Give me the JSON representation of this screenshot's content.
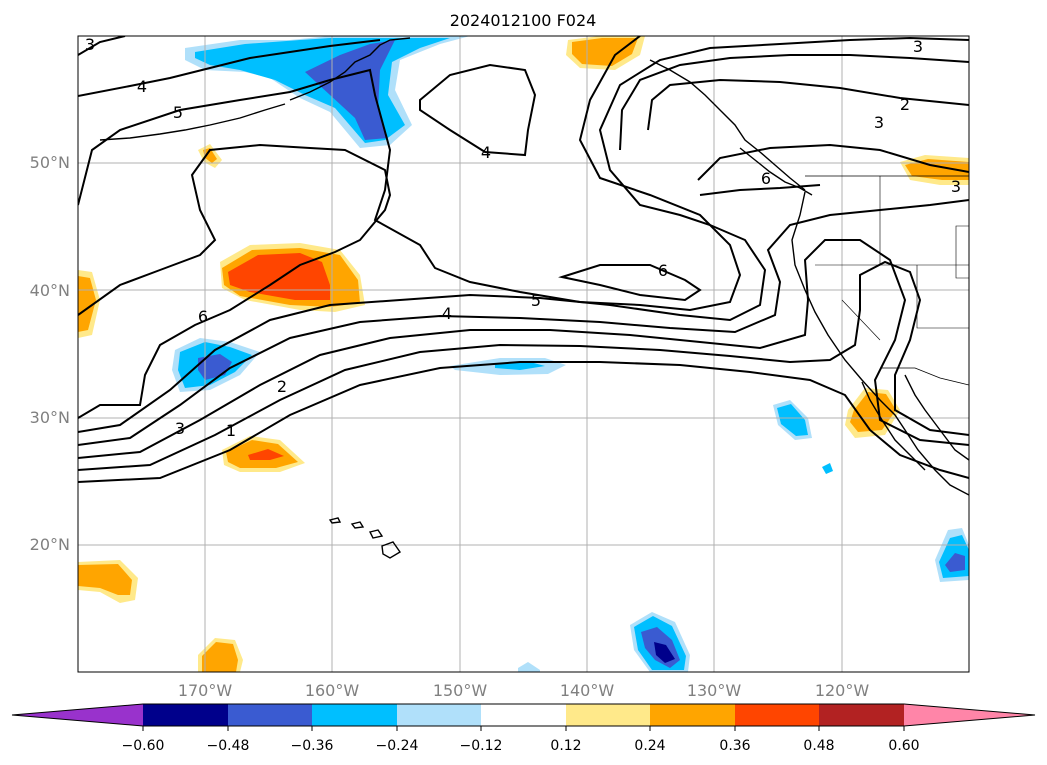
{
  "map": {
    "title": "2024012100 F024",
    "projection": "lat-lon",
    "extent": {
      "lon_min": -180,
      "lon_max": -110,
      "lat_min": 10,
      "lat_max": 60
    },
    "grid": true,
    "lat_labels": [
      "20°N",
      "30°N",
      "40°N",
      "50°N"
    ],
    "lon_labels": [
      "170°W",
      "160°W",
      "150°W",
      "140°W",
      "130°W",
      "120°W"
    ]
  },
  "colorbar": {
    "tick_labels": [
      "−0.60",
      "−0.48",
      "−0.36",
      "−0.24",
      "−0.12",
      "0.12",
      "0.24",
      "0.36",
      "0.48",
      "0.60"
    ],
    "colors": {
      "below_min": "#9932cc",
      "bins": [
        "#00008b",
        "#3a5bd1",
        "#00bfff",
        "#b0e0fa",
        "#ffffff",
        "#ffe98a",
        "#ffa500",
        "#ff4500",
        "#b22222"
      ],
      "above_max": "#ff85a8"
    }
  },
  "contour_labels": {
    "l1": "3",
    "l2": "4",
    "l3": "5",
    "l4": "4",
    "l5": "6",
    "l6": "5",
    "l7": "4",
    "l8": "6",
    "l9": "2",
    "l10": "3",
    "l11": "1",
    "l12": "3",
    "l13": "2",
    "l14": "3",
    "l15": "6",
    "l16": "3"
  }
}
